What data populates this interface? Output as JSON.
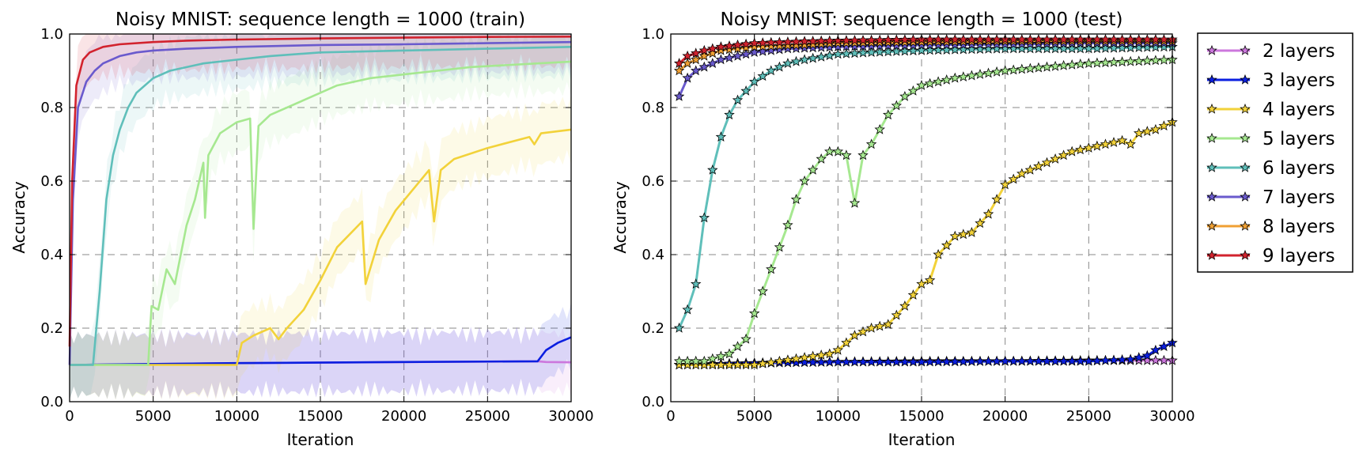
{
  "chart_data": [
    {
      "type": "line",
      "title": "Noisy MNIST: sequence length = 1000 (train)",
      "xlabel": "Iteration",
      "ylabel": "Accuracy",
      "xlim": [
        0,
        30000
      ],
      "ylim": [
        0.0,
        1.0
      ],
      "xticks": [
        "0",
        "5000",
        "10000",
        "15000",
        "20000",
        "25000",
        "30000"
      ],
      "yticks": [
        "0.0",
        "0.2",
        "0.4",
        "0.6",
        "0.8",
        "1.0"
      ],
      "grid": true,
      "series": [
        {
          "name": "2 layers",
          "color": "#cc77dd",
          "x": [
            0,
            10000,
            28000,
            28500,
            30000
          ],
          "values": [
            0.1,
            0.105,
            0.11,
            0.108,
            0.107
          ]
        },
        {
          "name": "3 layers",
          "color": "#0b1fe0",
          "x": [
            0,
            10000,
            20000,
            28000,
            28500,
            29200,
            30000
          ],
          "values": [
            0.1,
            0.105,
            0.108,
            0.11,
            0.14,
            0.16,
            0.175
          ]
        },
        {
          "name": "4 layers",
          "color": "#f2d23a",
          "x": [
            0,
            10000,
            10300,
            11000,
            12000,
            12500,
            13000,
            14000,
            15000,
            16000,
            17500,
            17700,
            18500,
            19500,
            21500,
            21800,
            22200,
            23000,
            25000,
            27500,
            27800,
            28200,
            30000
          ],
          "values": [
            0.1,
            0.1,
            0.16,
            0.18,
            0.2,
            0.17,
            0.2,
            0.25,
            0.33,
            0.42,
            0.49,
            0.32,
            0.44,
            0.52,
            0.63,
            0.49,
            0.63,
            0.66,
            0.69,
            0.72,
            0.7,
            0.73,
            0.74
          ]
        },
        {
          "name": "5 layers",
          "color": "#a6e890",
          "x": [
            0,
            4700,
            4900,
            5300,
            5800,
            6300,
            7000,
            7500,
            8000,
            8100,
            8300,
            9000,
            10000,
            10800,
            11000,
            11300,
            12000,
            14000,
            16000,
            18000,
            20000,
            22000,
            24000,
            26000,
            28000,
            30000
          ],
          "values": [
            0.1,
            0.1,
            0.26,
            0.25,
            0.36,
            0.32,
            0.48,
            0.55,
            0.65,
            0.5,
            0.67,
            0.73,
            0.76,
            0.77,
            0.47,
            0.75,
            0.78,
            0.82,
            0.86,
            0.88,
            0.89,
            0.9,
            0.91,
            0.915,
            0.92,
            0.925
          ]
        },
        {
          "name": "6 layers",
          "color": "#5fbfba",
          "x": [
            0,
            1400,
            1800,
            2200,
            2600,
            3000,
            3500,
            4000,
            5000,
            6000,
            8000,
            10000,
            12000,
            15000,
            20000,
            25000,
            30000
          ],
          "values": [
            0.1,
            0.1,
            0.3,
            0.55,
            0.67,
            0.74,
            0.8,
            0.84,
            0.88,
            0.9,
            0.92,
            0.93,
            0.94,
            0.95,
            0.955,
            0.96,
            0.965
          ]
        },
        {
          "name": "7 layers",
          "color": "#6a5acd",
          "x": [
            0,
            200,
            500,
            1000,
            1500,
            2000,
            3000,
            4000,
            5000,
            7000,
            10000,
            15000,
            20000,
            25000,
            30000
          ],
          "values": [
            0.1,
            0.55,
            0.8,
            0.87,
            0.9,
            0.92,
            0.94,
            0.95,
            0.955,
            0.96,
            0.965,
            0.97,
            0.972,
            0.975,
            0.978
          ]
        },
        {
          "name": "9 layers",
          "color": "#d2232e",
          "x": [
            0,
            150,
            400,
            800,
            1200,
            2000,
            3000,
            5000,
            7000,
            10000,
            15000,
            20000,
            25000,
            30000
          ],
          "values": [
            0.15,
            0.6,
            0.86,
            0.93,
            0.95,
            0.965,
            0.972,
            0.978,
            0.982,
            0.985,
            0.988,
            0.99,
            0.992,
            0.993
          ]
        }
      ]
    },
    {
      "type": "line",
      "title": "Noisy MNIST: sequence length = 1000 (test)",
      "xlabel": "Iteration",
      "ylabel": "Accuracy",
      "xlim": [
        0,
        30000
      ],
      "ylim": [
        0.0,
        1.0
      ],
      "xticks": [
        "0",
        "5000",
        "10000",
        "15000",
        "20000",
        "25000",
        "30000"
      ],
      "yticks": [
        "0.0",
        "0.2",
        "0.4",
        "0.6",
        "0.8",
        "1.0"
      ],
      "grid": true,
      "marker": "star",
      "series": [
        {
          "name": "2 layers",
          "color": "#cc77dd",
          "x": [
            500,
            5000,
            10000,
            15000,
            20000,
            25000,
            30000
          ],
          "values": [
            0.1,
            0.105,
            0.108,
            0.11,
            0.11,
            0.112,
            0.112
          ]
        },
        {
          "name": "3 layers",
          "color": "#0b1fe0",
          "x": [
            500,
            5000,
            10000,
            15000,
            20000,
            25000,
            27500,
            28500,
            29000,
            29500,
            30000
          ],
          "values": [
            0.1,
            0.105,
            0.108,
            0.108,
            0.11,
            0.11,
            0.115,
            0.125,
            0.14,
            0.15,
            0.16
          ]
        },
        {
          "name": "4 layers",
          "color": "#f2d23a",
          "x": [
            500,
            5000,
            8000,
            9500,
            10000,
            11000,
            12000,
            13000,
            14000,
            15000,
            15500,
            16000,
            17000,
            18000,
            19000,
            20000,
            21000,
            22000,
            23000,
            24000,
            25000,
            26000,
            27000,
            27500,
            28000,
            29000,
            30000
          ],
          "values": [
            0.1,
            0.1,
            0.12,
            0.13,
            0.14,
            0.18,
            0.2,
            0.21,
            0.26,
            0.32,
            0.33,
            0.4,
            0.45,
            0.46,
            0.51,
            0.59,
            0.62,
            0.64,
            0.66,
            0.68,
            0.69,
            0.7,
            0.71,
            0.7,
            0.73,
            0.74,
            0.76
          ]
        },
        {
          "name": "5 layers",
          "color": "#a6e890",
          "x": [
            500,
            2000,
            3500,
            4500,
            5000,
            5500,
            6000,
            7000,
            7500,
            8000,
            8500,
            9000,
            9500,
            10000,
            10500,
            11000,
            11500,
            12000,
            13000,
            14000,
            15000,
            17000,
            20000,
            25000,
            30000
          ],
          "values": [
            0.11,
            0.11,
            0.13,
            0.17,
            0.24,
            0.3,
            0.36,
            0.48,
            0.55,
            0.6,
            0.63,
            0.66,
            0.68,
            0.68,
            0.67,
            0.54,
            0.67,
            0.7,
            0.78,
            0.83,
            0.86,
            0.88,
            0.9,
            0.92,
            0.93
          ]
        },
        {
          "name": "6 layers",
          "color": "#5fbfba",
          "x": [
            500,
            1000,
            1500,
            2000,
            2500,
            3000,
            3500,
            4000,
            5000,
            6000,
            7000,
            8000,
            10000,
            12000,
            15000,
            20000,
            25000,
            30000
          ],
          "values": [
            0.2,
            0.25,
            0.32,
            0.5,
            0.63,
            0.72,
            0.78,
            0.82,
            0.87,
            0.9,
            0.92,
            0.93,
            0.945,
            0.95,
            0.955,
            0.96,
            0.96,
            0.965
          ]
        },
        {
          "name": "7 layers",
          "color": "#6a5acd",
          "x": [
            500,
            1000,
            1500,
            2000,
            3000,
            4000,
            5000,
            7000,
            10000,
            15000,
            20000,
            25000,
            30000
          ],
          "values": [
            0.83,
            0.88,
            0.9,
            0.91,
            0.93,
            0.94,
            0.95,
            0.96,
            0.965,
            0.97,
            0.972,
            0.975,
            0.975
          ]
        },
        {
          "name": "8 layers",
          "color": "#f0a033",
          "x": [
            500,
            1000,
            2000,
            3000,
            5000,
            8000,
            10000,
            15000,
            20000,
            25000,
            30000
          ],
          "values": [
            0.9,
            0.92,
            0.94,
            0.955,
            0.965,
            0.97,
            0.975,
            0.978,
            0.98,
            0.98,
            0.98
          ]
        },
        {
          "name": "9 layers",
          "color": "#d2232e",
          "x": [
            500,
            1000,
            2000,
            3000,
            5000,
            8000,
            10000,
            15000,
            20000,
            25000,
            30000
          ],
          "values": [
            0.92,
            0.94,
            0.955,
            0.965,
            0.975,
            0.98,
            0.982,
            0.985,
            0.985,
            0.985,
            0.985
          ]
        }
      ]
    }
  ],
  "legend": {
    "entries": [
      {
        "label": "2 layers",
        "color": "#cc77dd"
      },
      {
        "label": "3 layers",
        "color": "#0b1fe0"
      },
      {
        "label": "4 layers",
        "color": "#f2d23a"
      },
      {
        "label": "5 layers",
        "color": "#a6e890"
      },
      {
        "label": "6 layers",
        "color": "#5fbfba"
      },
      {
        "label": "7 layers",
        "color": "#6a5acd"
      },
      {
        "label": "8 layers",
        "color": "#f0a033"
      },
      {
        "label": "9 layers",
        "color": "#d2232e"
      }
    ]
  }
}
